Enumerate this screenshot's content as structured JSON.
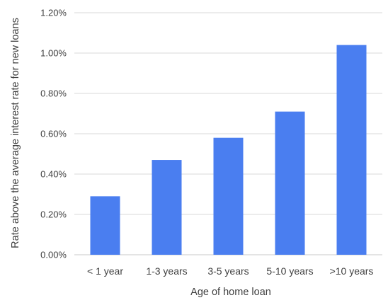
{
  "chart_data": {
    "type": "bar",
    "title": "",
    "xlabel": "Age of home loan",
    "ylabel": "Rate above the average interest rate for new loans",
    "categories": [
      "< 1 year",
      "1-3 years",
      "3-5 years",
      "5-10 years",
      ">10 years"
    ],
    "values": [
      0.29,
      0.47,
      0.58,
      0.71,
      1.04
    ],
    "ylim": [
      0,
      1.2
    ],
    "yticks": [
      0,
      0.2,
      0.4,
      0.6,
      0.8,
      1.0,
      1.2
    ],
    "ytick_labels": [
      "0.00%",
      "0.20%",
      "0.40%",
      "0.60%",
      "0.80%",
      "1.00%",
      "1.20%"
    ],
    "grid": true,
    "legend": "none",
    "bar_color": "#4a7ef0"
  }
}
